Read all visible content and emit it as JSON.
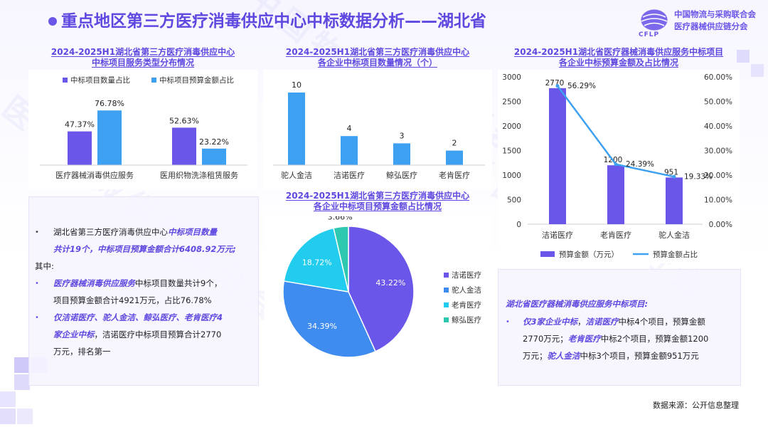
{
  "header": {
    "title": "重点地区第三方医疗消毒供应中心中标数据分析——湖北省",
    "logo": {
      "mark_text": "CFLP",
      "line1": "中国物流与采购联合会",
      "line2": "医疗器械供应链分会"
    }
  },
  "colors": {
    "primary": "#6a56e8",
    "secondary": "#3ea0f0",
    "cyan": "#22ccee",
    "teal": "#2ec7b0"
  },
  "chart_data": [
    {
      "type": "bar",
      "title_line1": "2024-2025H1湖北省第三方医疗消毒供应中心",
      "title_line2": "中标项目服务类型分布情况",
      "categories": [
        "医疗器械消毒供应服务",
        "医用织物洗涤租赁服务"
      ],
      "series": [
        {
          "name": "中标项目数量占比",
          "values": [
            47.37,
            52.63
          ],
          "labels": [
            "47.37%",
            "52.63%"
          ]
        },
        {
          "name": "中标项目预算金额占比",
          "values": [
            76.78,
            23.22
          ],
          "labels": [
            "76.78%",
            "23.22%"
          ]
        }
      ],
      "legend": "top",
      "grid": false
    },
    {
      "type": "bar",
      "title_line1": "2024-2025H1湖北省第三方医疗消毒供应中心",
      "title_line2": "各企业中标项目数量情况（个）",
      "categories": [
        "驼人金洁",
        "洁诺医疗",
        "鲸弘医疗",
        "老肯医疗"
      ],
      "values": [
        10,
        4,
        3,
        2
      ],
      "grid": false
    },
    {
      "type": "bar",
      "title_line1": "2024-2025H1湖北省医疗器械消毒供应服务中标项目",
      "title_line2": "各企业中标预算金额及占比情况",
      "categories": [
        "洁诺医疗",
        "老肯医疗",
        "驼人金洁"
      ],
      "series": [
        {
          "name": "预算金额（万元）",
          "type": "bar",
          "values": [
            2770,
            1200,
            951
          ]
        },
        {
          "name": "预算金额占比",
          "type": "line",
          "values": [
            56.29,
            24.39,
            19.33
          ],
          "labels": [
            "56.29%",
            "24.39%",
            "19.33%"
          ]
        }
      ],
      "y_left": {
        "ylim": [
          0,
          3000
        ],
        "ticks": [
          "0",
          "500",
          "1000",
          "1500",
          "2000",
          "2500",
          "3000"
        ]
      },
      "y_right": {
        "ylim": [
          0,
          60
        ],
        "ticks": [
          "0.00%",
          "10.00%",
          "20.00%",
          "30.00%",
          "40.00%",
          "50.00%",
          "60.00%"
        ]
      },
      "legend": "bottom",
      "grid": false
    },
    {
      "type": "pie",
      "title_line1": "2024-2025H1湖北省第三方医疗消毒供应中心",
      "title_line2": "各企业中标项目预算金额占比情况",
      "slices": [
        {
          "name": "洁诺医疗",
          "value": 43.22,
          "label": "43.22%",
          "color": "#6a56e8"
        },
        {
          "name": "驼人金洁",
          "value": 34.39,
          "label": "34.39%",
          "color": "#3e8cf0"
        },
        {
          "name": "老肯医疗",
          "value": 18.72,
          "label": "18.72%",
          "color": "#22ccee"
        },
        {
          "name": "鲸弘医疗",
          "value": 3.66,
          "label": "3.66%",
          "color": "#2ec7b0"
        }
      ],
      "legend": "right"
    }
  ],
  "left_text": {
    "l1a": "湖北省第三方医疗消毒供应中心",
    "l1b": "中标项目数量",
    "l2": "共计19个，中标项目预算金额合计6408.92万元;",
    "l3": "其中:",
    "l4a": "医疗器械消毒供应服务",
    "l4b": "中标项目数量共计9个，",
    "l5": "项目预算金额合计4921万元，占比76.78%",
    "l6": "仅洁诺医疗、驼人金洁、鲸弘医疗、老肯医疗4",
    "l7a": "家企业中标",
    "l7b": "，洁诺医疗中标项目预算合计2770",
    "l8": "万元，排名第一"
  },
  "right_text": {
    "heading": "湖北省医疗器械消毒供应服务中标项目:",
    "l1a": "仅3家企业中标",
    "l1b": "，",
    "l1c": "洁诺医疗",
    "l1d": "中标4个项目，预算金额",
    "l2a": "2770万元；",
    "l2b": "老肯医疗",
    "l2c": "中标2个项目，预算金额1200",
    "l3a": "万元；",
    "l3b": "驼人金洁",
    "l3c": "中标3个项目，预算金额951万元"
  },
  "footer": {
    "source": "数据来源：公开信息整理"
  }
}
